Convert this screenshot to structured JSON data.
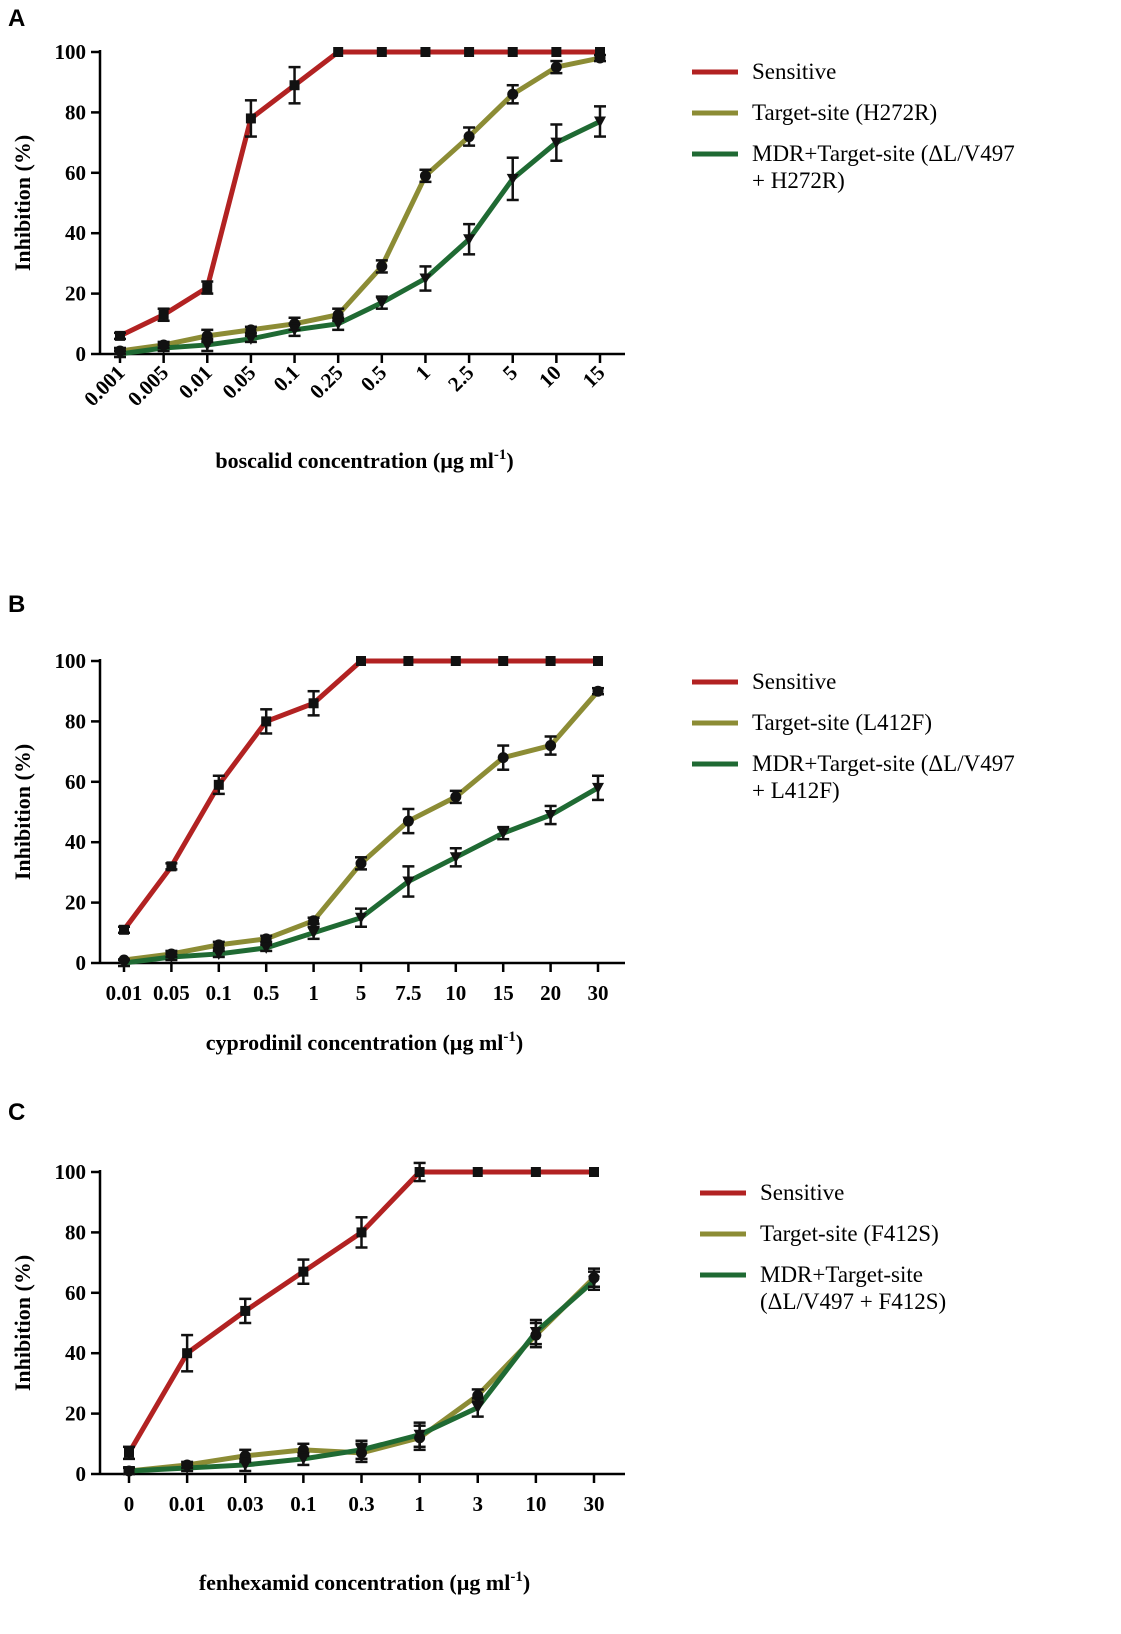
{
  "chart_data": [
    {
      "panel": "A",
      "type": "line",
      "x_axis_type": "categorical",
      "categories": [
        "0.001",
        "0.005",
        "0.01",
        "0.05",
        "0.1",
        "0.25",
        "0.5",
        "1",
        "2.5",
        "5",
        "10",
        "15"
      ],
      "xlabel": "boscalid concentration (µg ml",
      "xlabel_sup": "-1",
      "xlabel_close": ")",
      "ylabel": "Inhibition (%)",
      "ylim": [
        0,
        100
      ],
      "yticks": [
        "0",
        "20",
        "40",
        "60",
        "80",
        "100"
      ],
      "rotated_xticks": true,
      "legend_position": "right",
      "series": [
        {
          "name": "Sensitive",
          "color": "#b22222",
          "marker": "square",
          "values": [
            6,
            13,
            22,
            78,
            89,
            100,
            100,
            100,
            100,
            100,
            100,
            100
          ],
          "errors": [
            1,
            2,
            2,
            6,
            6,
            0,
            0,
            0,
            0,
            0,
            0,
            0
          ]
        },
        {
          "name": "Target-site (H272R)",
          "color": "#8c8c35",
          "marker": "circle",
          "values": [
            1,
            3,
            6,
            8,
            10,
            13,
            29,
            59,
            72,
            86,
            95,
            98
          ],
          "errors": [
            1,
            1,
            2,
            1,
            2,
            2,
            2,
            2,
            3,
            3,
            2,
            1
          ]
        },
        {
          "name": "MDR+Target-site (ΔL/V497",
          "name_line2": "+ H272R)",
          "color": "#1f6a33",
          "marker": "triangle-down",
          "values": [
            0,
            2,
            3,
            5,
            8,
            10,
            17,
            25,
            38,
            58,
            70,
            77
          ],
          "errors": [
            1,
            1,
            2,
            1,
            2,
            2,
            2,
            4,
            5,
            7,
            6,
            5
          ]
        }
      ]
    },
    {
      "panel": "B",
      "type": "line",
      "x_axis_type": "categorical",
      "categories": [
        "0.01",
        "0.05",
        "0.1",
        "0.5",
        "1",
        "5",
        "7.5",
        "10",
        "15",
        "20",
        "30"
      ],
      "xlabel": "cyprodinil concentration (µg ml",
      "xlabel_sup": "-1",
      "xlabel_close": ")",
      "ylabel": "Inhibition (%)",
      "ylim": [
        0,
        100
      ],
      "yticks": [
        "0",
        "20",
        "40",
        "60",
        "80",
        "100"
      ],
      "rotated_xticks": false,
      "legend_position": "right",
      "series": [
        {
          "name": "Sensitive",
          "color": "#b22222",
          "marker": "square",
          "values": [
            11,
            32,
            59,
            80,
            86,
            100,
            100,
            100,
            100,
            100,
            100
          ],
          "errors": [
            1,
            1,
            3,
            4,
            4,
            0,
            0,
            0,
            0,
            0,
            0
          ]
        },
        {
          "name": "Target-site (L412F)",
          "color": "#8c8c35",
          "marker": "circle",
          "values": [
            1,
            3,
            6,
            8,
            14,
            33,
            47,
            55,
            68,
            72,
            90
          ],
          "errors": [
            0,
            1,
            1,
            1,
            1,
            2,
            4,
            2,
            4,
            3,
            1
          ]
        },
        {
          "name": "MDR+Target-site (ΔL/V497",
          "name_line2": "+ L412F)",
          "color": "#1f6a33",
          "marker": "triangle-down",
          "values": [
            0,
            2,
            3,
            5,
            10,
            15,
            27,
            35,
            43,
            49,
            58
          ],
          "errors": [
            1,
            1,
            1,
            1,
            2,
            3,
            5,
            3,
            2,
            3,
            4
          ]
        }
      ]
    },
    {
      "panel": "C",
      "type": "line",
      "x_axis_type": "categorical",
      "categories": [
        "0",
        "0.01",
        "0.03",
        "0.1",
        "0.3",
        "1",
        "3",
        "10",
        "30"
      ],
      "xlabel": "fenhexamid concentration (µg ml",
      "xlabel_sup": "-1",
      "xlabel_close": ")",
      "ylabel": "Inhibition (%)",
      "ylim": [
        0,
        100
      ],
      "yticks": [
        "0",
        "20",
        "40",
        "60",
        "80",
        "100"
      ],
      "rotated_xticks": false,
      "legend_position": "right",
      "series": [
        {
          "name": "Sensitive",
          "color": "#b22222",
          "marker": "square",
          "values": [
            7,
            40,
            54,
            67,
            80,
            100,
            100,
            100,
            100
          ],
          "errors": [
            2,
            6,
            4,
            4,
            5,
            3,
            0,
            0,
            0
          ]
        },
        {
          "name": "Target-site (F412S)",
          "color": "#8c8c35",
          "marker": "circle",
          "values": [
            1,
            3,
            6,
            8,
            7,
            12,
            26,
            46,
            65
          ],
          "errors": [
            1,
            1,
            2,
            2,
            3,
            4,
            2,
            4,
            3
          ]
        },
        {
          "name": "MDR+Target-site",
          "name_line2": "(ΔL/V497 + F412S)",
          "color": "#1f6a33",
          "marker": "triangle-down",
          "values": [
            1,
            2,
            3,
            5,
            8,
            13,
            22,
            47,
            64
          ],
          "errors": [
            1,
            1,
            2,
            2,
            3,
            4,
            3,
            4,
            3
          ]
        }
      ]
    }
  ]
}
